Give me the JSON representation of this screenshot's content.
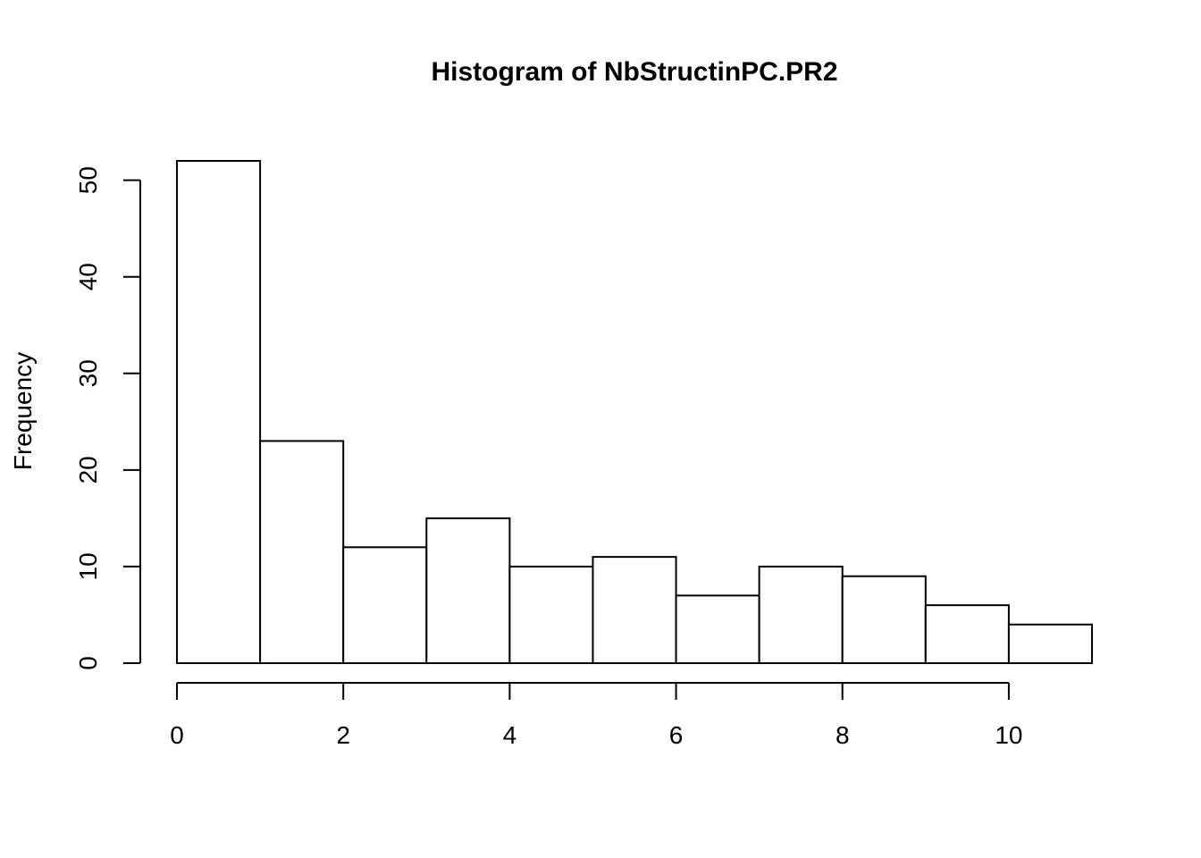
{
  "chart_data": {
    "type": "bar",
    "title": "Histogram of NbStructinPC.PR2",
    "xlabel": "",
    "ylabel": "Frequency",
    "bins": [
      {
        "start": 0,
        "end": 1,
        "count": 52
      },
      {
        "start": 1,
        "end": 2,
        "count": 23
      },
      {
        "start": 2,
        "end": 3,
        "count": 12
      },
      {
        "start": 3,
        "end": 4,
        "count": 15
      },
      {
        "start": 4,
        "end": 5,
        "count": 10
      },
      {
        "start": 5,
        "end": 6,
        "count": 11
      },
      {
        "start": 6,
        "end": 7,
        "count": 7
      },
      {
        "start": 7,
        "end": 8,
        "count": 10
      },
      {
        "start": 8,
        "end": 9,
        "count": 9
      },
      {
        "start": 9,
        "end": 10,
        "count": 6
      },
      {
        "start": 10,
        "end": 11,
        "count": 4
      }
    ],
    "x_ticks": [
      0,
      2,
      4,
      6,
      8,
      10
    ],
    "y_ticks": [
      0,
      10,
      20,
      30,
      40,
      50
    ],
    "xlim": [
      0,
      11
    ],
    "ylim": [
      0,
      52
    ],
    "grid": false,
    "bar_fill": "#ffffff",
    "bar_stroke": "#000000"
  }
}
